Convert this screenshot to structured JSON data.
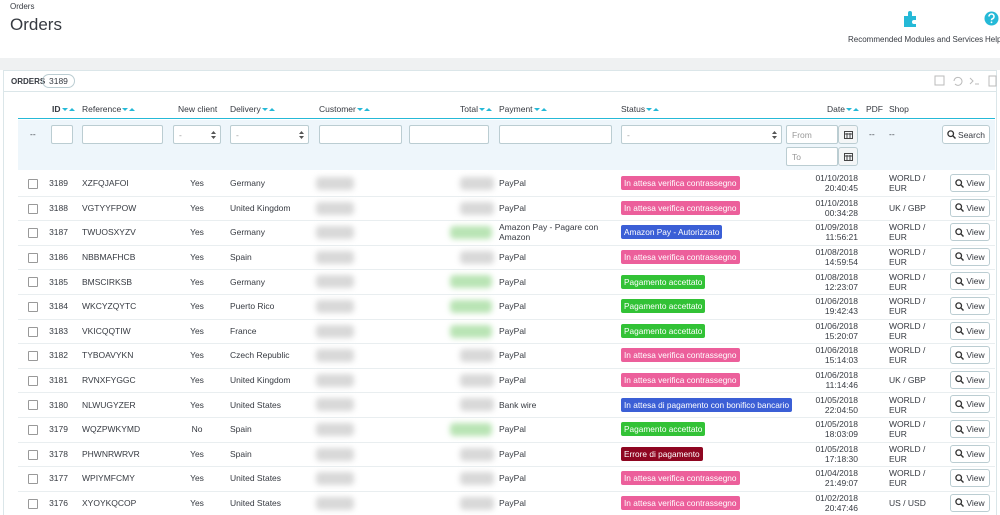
{
  "breadcrumb": "Orders",
  "title": "Orders",
  "toolbar": [
    {
      "label": "Recommended Modules and Services"
    },
    {
      "label": "Help"
    }
  ],
  "panel": {
    "title": "ORDERS",
    "count": 3189
  },
  "columns": [
    "ID",
    "Reference",
    "New client",
    "Delivery",
    "Customer",
    "Total",
    "Payment",
    "Status",
    "Date",
    "PDF",
    "Shop"
  ],
  "filters": {
    "bulk": "--",
    "select_placeholder": "-",
    "date_from": "From",
    "date_to": "To",
    "pdf": "--",
    "shop": "--",
    "search": "Search"
  },
  "view_label": "View",
  "rows": [
    {
      "id": 3189,
      "reference": "XZFQJAFOI",
      "new_client": "Yes",
      "delivery": "Germany",
      "payment": "PayPal",
      "status": {
        "label": "In attesa verifica contrassegno",
        "color": "#ec5f9b"
      },
      "date": "01/10/2018",
      "time": "20:40:45",
      "shop": "WORLD / EUR"
    },
    {
      "id": 3188,
      "reference": "VGTYYFPOW",
      "new_client": "Yes",
      "delivery": "United Kingdom",
      "payment": "PayPal",
      "status": {
        "label": "In attesa verifica contrassegno",
        "color": "#ec5f9b"
      },
      "date": "01/10/2018",
      "time": "00:34:28",
      "shop": "UK / GBP"
    },
    {
      "id": 3187,
      "reference": "TWUOSXYZV",
      "new_client": "Yes",
      "delivery": "Germany",
      "payment": "Amazon Pay - Pagare con Amazon",
      "status": {
        "label": "Amazon Pay - Autorizzato",
        "color": "#3b5fd6"
      },
      "date": "01/09/2018",
      "time": "11:56:21",
      "shop": "WORLD / EUR"
    },
    {
      "id": 3186,
      "reference": "NBBMAFHCB",
      "new_client": "Yes",
      "delivery": "Spain",
      "payment": "PayPal",
      "status": {
        "label": "In attesa verifica contrassegno",
        "color": "#ec5f9b"
      },
      "date": "01/08/2018",
      "time": "14:59:54",
      "shop": "WORLD / EUR"
    },
    {
      "id": 3185,
      "reference": "BMSCIRKSB",
      "new_client": "Yes",
      "delivery": "Germany",
      "payment": "PayPal",
      "status": {
        "label": "Pagamento accettato",
        "color": "#32c236"
      },
      "date": "01/08/2018",
      "time": "12:23:07",
      "shop": "WORLD / EUR"
    },
    {
      "id": 3184,
      "reference": "WKCYZQYTC",
      "new_client": "Yes",
      "delivery": "Puerto Rico",
      "payment": "PayPal",
      "status": {
        "label": "Pagamento accettato",
        "color": "#32c236"
      },
      "date": "01/06/2018",
      "time": "19:42:43",
      "shop": "WORLD / EUR"
    },
    {
      "id": 3183,
      "reference": "VKICQQTIW",
      "new_client": "Yes",
      "delivery": "France",
      "payment": "PayPal",
      "status": {
        "label": "Pagamento accettato",
        "color": "#32c236"
      },
      "date": "01/06/2018",
      "time": "15:20:07",
      "shop": "WORLD / EUR"
    },
    {
      "id": 3182,
      "reference": "TYBOAVYKN",
      "new_client": "Yes",
      "delivery": "Czech Republic",
      "payment": "PayPal",
      "status": {
        "label": "In attesa verifica contrassegno",
        "color": "#ec5f9b"
      },
      "date": "01/06/2018",
      "time": "15:14:03",
      "shop": "WORLD / EUR"
    },
    {
      "id": 3181,
      "reference": "RVNXFYGGC",
      "new_client": "Yes",
      "delivery": "United Kingdom",
      "payment": "PayPal",
      "status": {
        "label": "In attesa verifica contrassegno",
        "color": "#ec5f9b"
      },
      "date": "01/06/2018",
      "time": "11:14:46",
      "shop": "UK / GBP"
    },
    {
      "id": 3180,
      "reference": "NLWUGYZER",
      "new_client": "Yes",
      "delivery": "United States",
      "payment": "Bank wire",
      "status": {
        "label": "In attesa di pagamento con bonifico bancario",
        "color": "#3b5fd6"
      },
      "date": "01/05/2018",
      "time": "22:04:50",
      "shop": "WORLD / EUR"
    },
    {
      "id": 3179,
      "reference": "WQZPWKYMD",
      "new_client": "No",
      "delivery": "Spain",
      "payment": "PayPal",
      "status": {
        "label": "Pagamento accettato",
        "color": "#32c236"
      },
      "date": "01/05/2018",
      "time": "18:03:09",
      "shop": "WORLD / EUR"
    },
    {
      "id": 3178,
      "reference": "PHWNRWRVR",
      "new_client": "Yes",
      "delivery": "Spain",
      "payment": "PayPal",
      "status": {
        "label": "Errore di pagamento",
        "color": "#8f0621"
      },
      "date": "01/05/2018",
      "time": "17:18:30",
      "shop": "WORLD / EUR"
    },
    {
      "id": 3177,
      "reference": "WPIYMFCMY",
      "new_client": "Yes",
      "delivery": "United States",
      "payment": "PayPal",
      "status": {
        "label": "In attesa verifica contrassegno",
        "color": "#ec5f9b"
      },
      "date": "01/04/2018",
      "time": "21:49:07",
      "shop": "WORLD / EUR"
    },
    {
      "id": 3176,
      "reference": "XYOYKQCOP",
      "new_client": "Yes",
      "delivery": "United States",
      "payment": "PayPal",
      "status": {
        "label": "In attesa verifica contrassegno",
        "color": "#ec5f9b"
      },
      "date": "01/02/2018",
      "time": "20:47:46",
      "shop": "US / USD"
    }
  ]
}
